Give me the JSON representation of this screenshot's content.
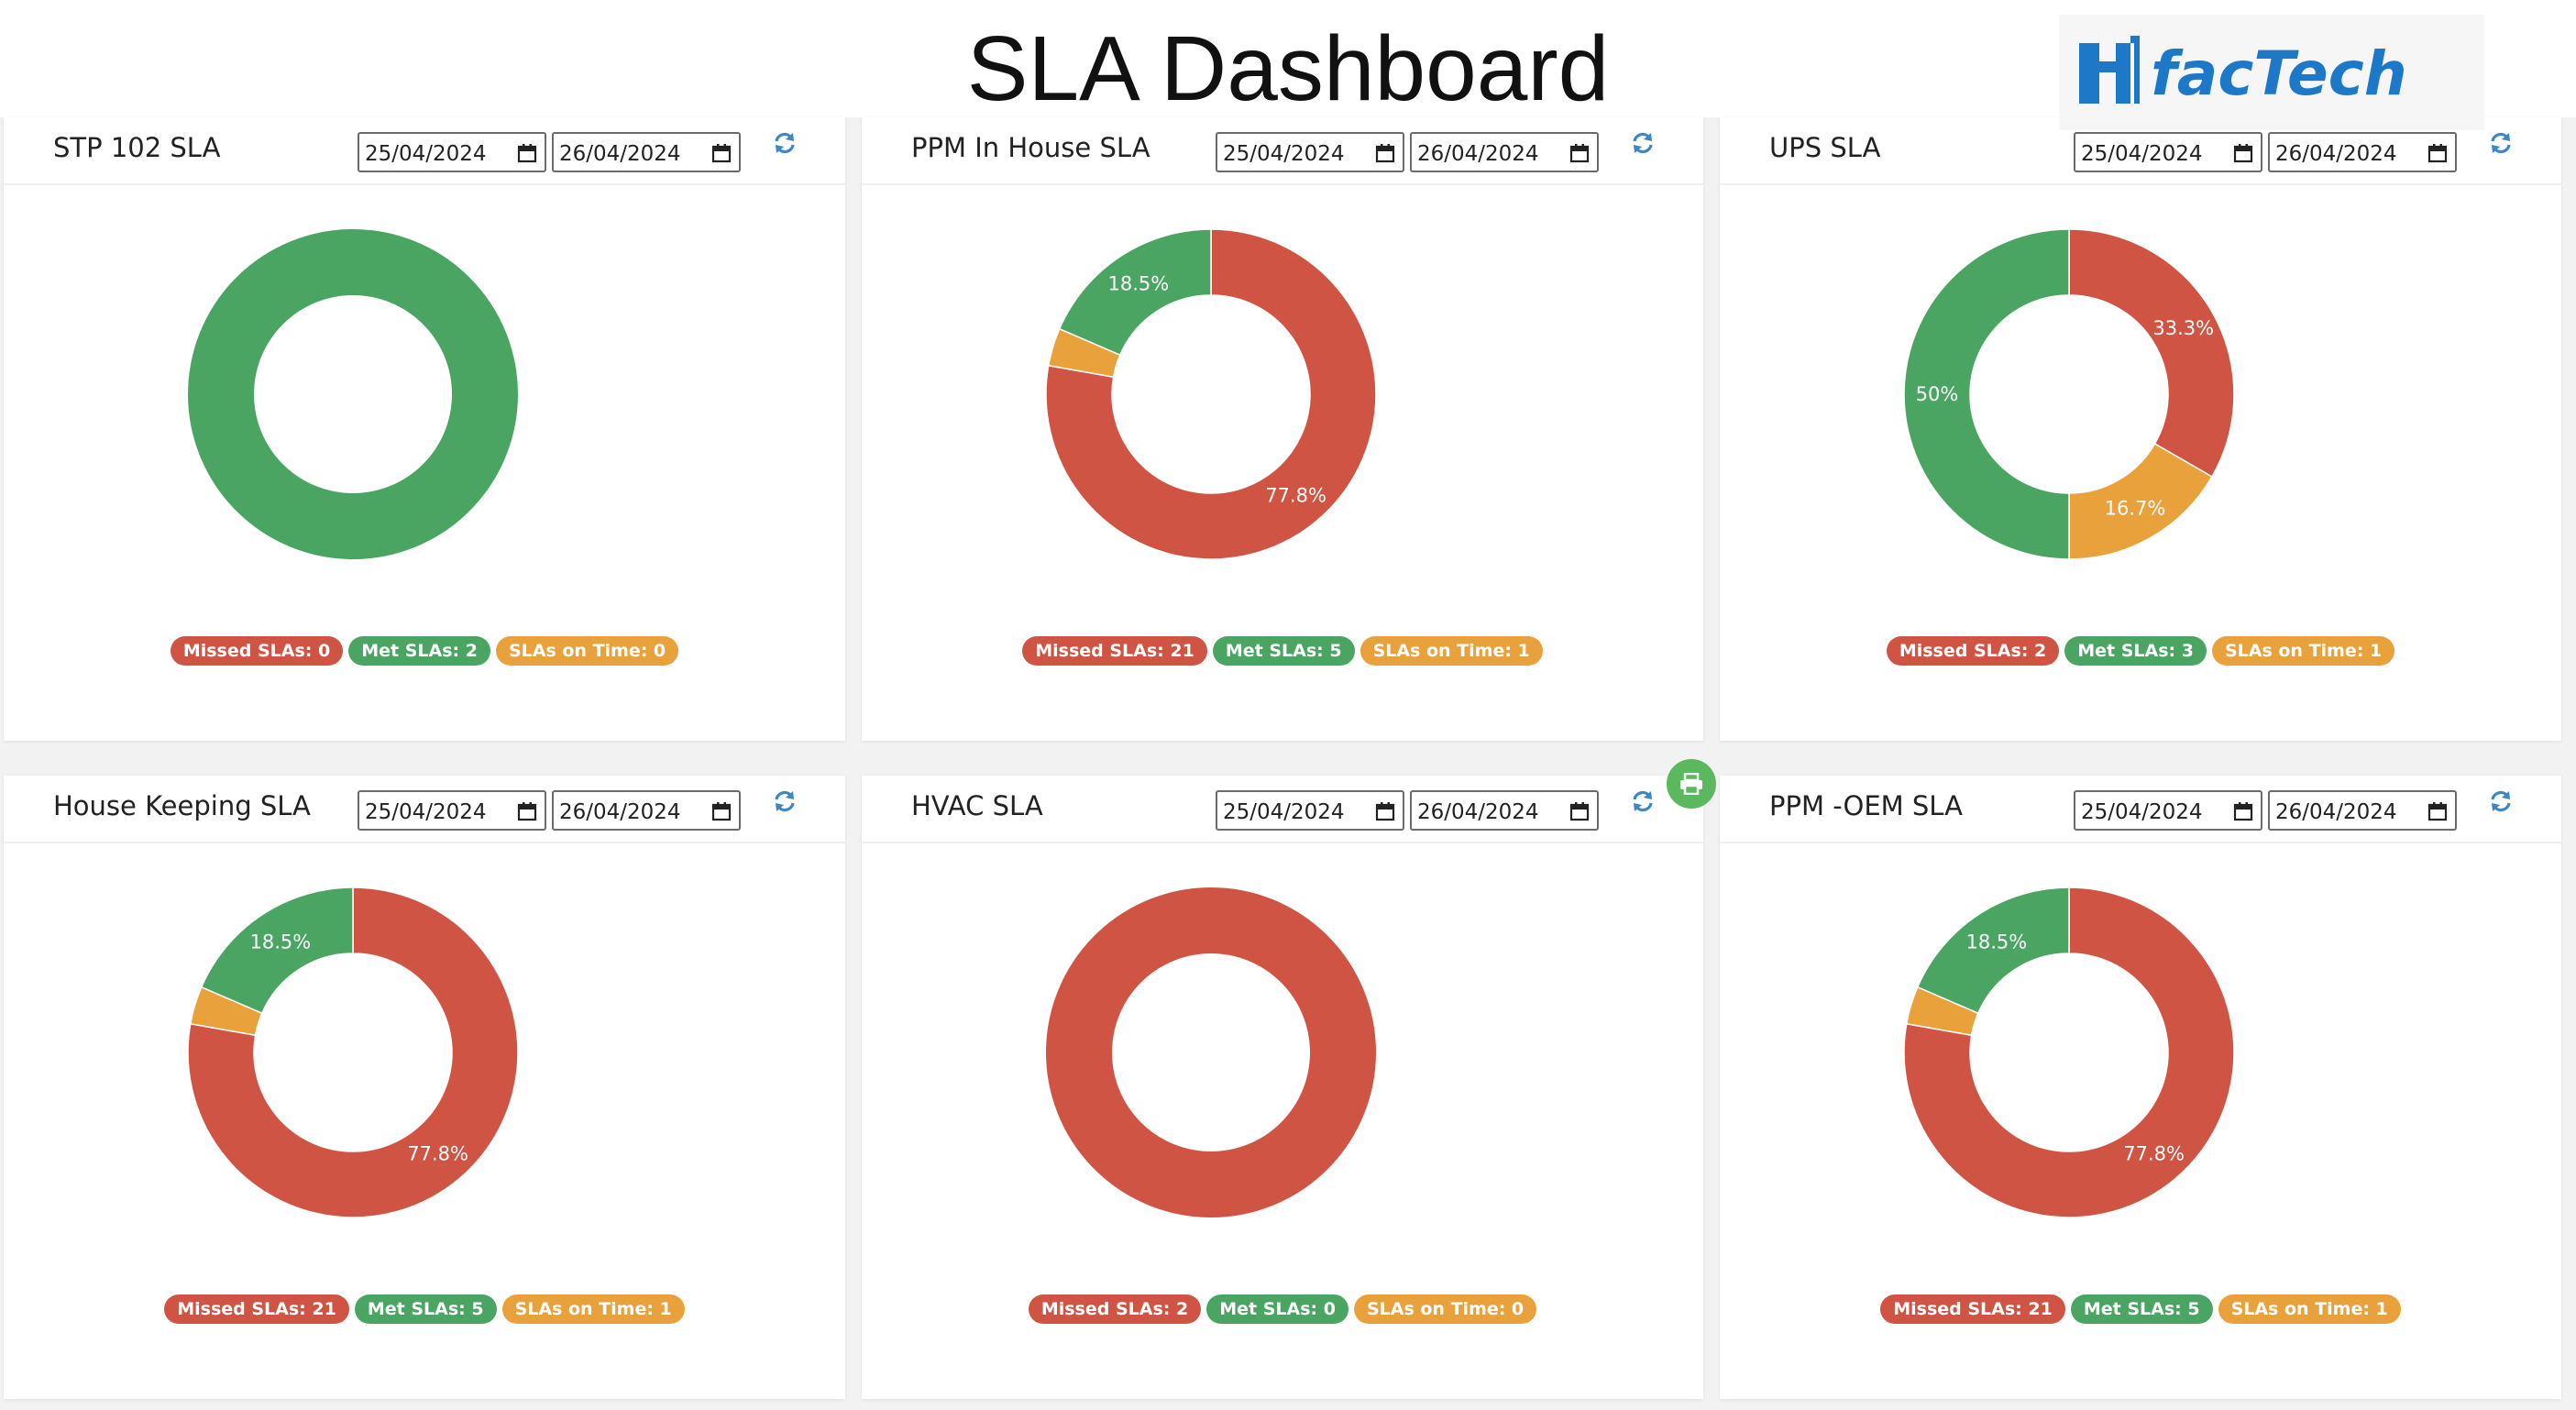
{
  "page": {
    "title": "SLA Dashboard"
  },
  "logo": {
    "text": "facTech"
  },
  "colors": {
    "missed": "#d05443",
    "met": "#4aa562",
    "on_time": "#e9a23b"
  },
  "icons": {
    "refresh": "refresh-icon",
    "calendar": "calendar-icon",
    "print": "print-icon"
  },
  "panels": [
    {
      "title": "STP 102 SLA",
      "date_from": "25/04/2024",
      "date_to": "26/04/2024",
      "legend": {
        "missed": "Missed SLAs: 0",
        "met": "Met SLAs: 2",
        "on_time": "SLAs on Time: 0"
      }
    },
    {
      "title": "PPM In House SLA",
      "date_from": "25/04/2024",
      "date_to": "26/04/2024",
      "legend": {
        "missed": "Missed SLAs: 21",
        "met": "Met SLAs: 5",
        "on_time": "SLAs on Time: 1"
      }
    },
    {
      "title": "UPS SLA",
      "date_from": "25/04/2024",
      "date_to": "26/04/2024",
      "legend": {
        "missed": "Missed SLAs: 2",
        "met": "Met SLAs: 3",
        "on_time": "SLAs on Time: 1"
      }
    },
    {
      "title": "House Keeping SLA",
      "date_from": "25/04/2024",
      "date_to": "26/04/2024",
      "legend": {
        "missed": "Missed SLAs: 21",
        "met": "Met SLAs: 5",
        "on_time": "SLAs on Time: 1"
      }
    },
    {
      "title": "HVAC SLA",
      "date_from": "25/04/2024",
      "date_to": "26/04/2024",
      "legend": {
        "missed": "Missed SLAs: 2",
        "met": "Met SLAs: 0",
        "on_time": "SLAs on Time: 0"
      }
    },
    {
      "title": "PPM -OEM SLA",
      "date_from": "25/04/2024",
      "date_to": "26/04/2024",
      "legend": {
        "missed": "Missed SLAs: 21",
        "met": "Met SLAs: 5",
        "on_time": "SLAs on Time: 1"
      }
    }
  ],
  "chart_data": [
    {
      "type": "pie",
      "title": "STP 102 SLA",
      "categories": [
        "Missed SLAs",
        "SLAs on Time",
        "Met SLAs"
      ],
      "values": [
        0,
        0,
        2
      ],
      "labels": [
        "",
        "",
        ""
      ]
    },
    {
      "type": "pie",
      "title": "PPM In House SLA",
      "categories": [
        "Missed SLAs",
        "SLAs on Time",
        "Met SLAs"
      ],
      "values": [
        21,
        1,
        5
      ],
      "labels": [
        "77.8%",
        "",
        "18.5%"
      ]
    },
    {
      "type": "pie",
      "title": "UPS SLA",
      "categories": [
        "Missed SLAs",
        "SLAs on Time",
        "Met SLAs"
      ],
      "values": [
        2,
        1,
        3
      ],
      "labels": [
        "33.3%",
        "16.7%",
        "50%"
      ]
    },
    {
      "type": "pie",
      "title": "House Keeping SLA",
      "categories": [
        "Missed SLAs",
        "SLAs on Time",
        "Met SLAs"
      ],
      "values": [
        21,
        1,
        5
      ],
      "labels": [
        "77.8%",
        "",
        "18.5%"
      ]
    },
    {
      "type": "pie",
      "title": "HVAC SLA",
      "categories": [
        "Missed SLAs",
        "SLAs on Time",
        "Met SLAs"
      ],
      "values": [
        2,
        0,
        0
      ],
      "labels": [
        "",
        "",
        ""
      ]
    },
    {
      "type": "pie",
      "title": "PPM -OEM SLA",
      "categories": [
        "Missed SLAs",
        "SLAs on Time",
        "Met SLAs"
      ],
      "values": [
        21,
        1,
        5
      ],
      "labels": [
        "77.8%",
        "",
        "18.5%"
      ]
    }
  ]
}
